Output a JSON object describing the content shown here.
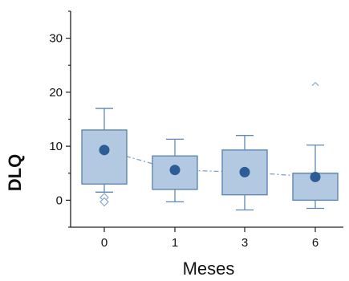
{
  "chart_data": {
    "type": "box",
    "xlabel": "Meses",
    "ylabel": "DLQ",
    "categories": [
      "0",
      "1",
      "3",
      "6"
    ],
    "ylim": [
      -5,
      35
    ],
    "yticks": [
      0,
      10,
      20,
      30
    ],
    "grid": false,
    "legend": "none",
    "boxes": [
      {
        "category": "0",
        "whisker_low": 1.5,
        "q1": 3,
        "q3": 13,
        "whisker_high": 17,
        "mean": 9.3,
        "outliers": [
          0.5,
          -0.3
        ]
      },
      {
        "category": "1",
        "whisker_low": -0.3,
        "q1": 2,
        "q3": 8.2,
        "whisker_high": 11.3,
        "mean": 5.6,
        "outliers": []
      },
      {
        "category": "3",
        "whisker_low": -1.8,
        "q1": 1,
        "q3": 9.3,
        "whisker_high": 12,
        "mean": 5.2,
        "outliers": []
      },
      {
        "category": "6",
        "whisker_low": -1.5,
        "q1": 0,
        "q3": 5,
        "whisker_high": 10.2,
        "mean": 4.3,
        "outliers": [
          21.5
        ]
      }
    ],
    "mean_line": "dash-dot"
  },
  "colors": {
    "box_fill": "#b3c9e1",
    "box_stroke": "#5f87b3",
    "mean_marker": "#2c5d97",
    "mean_line": "#7ea3c8",
    "outlier": "#8aa9cf",
    "axis": "#222222"
  }
}
